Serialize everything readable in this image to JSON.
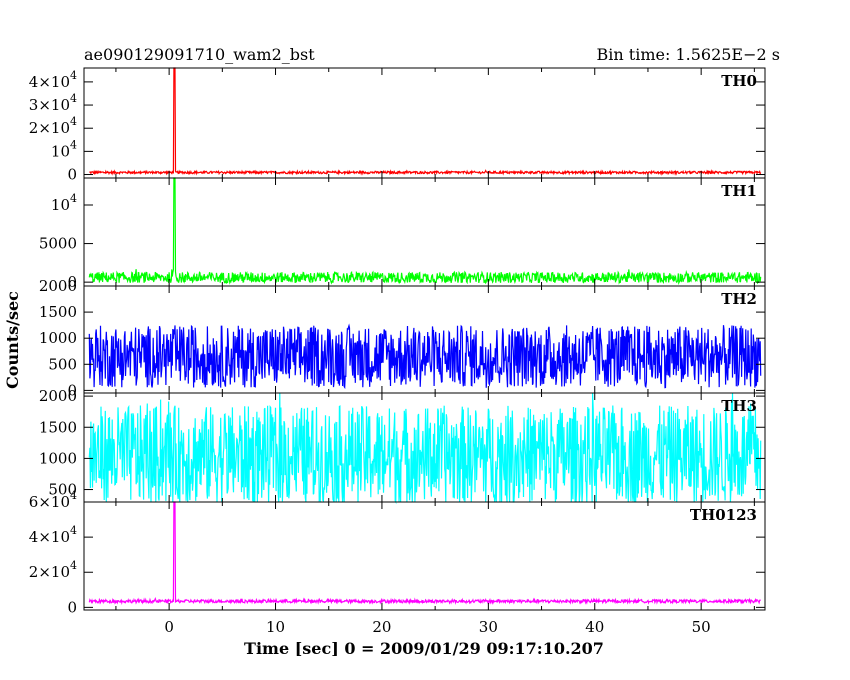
{
  "header": {
    "left": "ae090129091710_wam2_bst",
    "right": "Bin time: 1.5625E−2 s"
  },
  "chart_data": {
    "type": "line",
    "xlabel": "Time [sec] 0 = 2009/01/29 09:17:10.207",
    "ylabel": "Counts/sec",
    "xlim": [
      -8,
      56
    ],
    "x_ticks": [
      0,
      10,
      20,
      30,
      40,
      50
    ],
    "x_tick_labels": [
      "0",
      "10",
      "20",
      "30",
      "40",
      "50"
    ],
    "data_range": [
      -7.5,
      55.6
    ],
    "panels": [
      {
        "name": "TH0",
        "color": "#ff0000",
        "ylim": [
          -1500,
          46000
        ],
        "y_ticks": [
          0,
          10000,
          20000,
          30000,
          40000
        ],
        "y_tick_labels": [
          {
            "m": "0",
            "e": ""
          },
          {
            "m": "10",
            "e": "4"
          },
          {
            "m": "2×10",
            "e": "4"
          },
          {
            "m": "3×10",
            "e": "4"
          },
          {
            "m": "4×10",
            "e": "4"
          }
        ],
        "baseline": 900,
        "noise": 500,
        "peak": {
          "x": 0.5,
          "y": 46000
        }
      },
      {
        "name": "TH1",
        "color": "#00ff00",
        "ylim": [
          -500,
          13500
        ],
        "y_ticks": [
          0,
          5000,
          10000
        ],
        "y_tick_labels": [
          {
            "m": "0",
            "e": ""
          },
          {
            "m": "5000",
            "e": ""
          },
          {
            "m": "10",
            "e": "4"
          }
        ],
        "baseline": 600,
        "noise": 700,
        "peak": {
          "x": 0.5,
          "y": 13500
        }
      },
      {
        "name": "TH2",
        "color": "#0000ff",
        "ylim": [
          -50,
          2000
        ],
        "y_ticks": [
          0,
          500,
          1000,
          1500,
          2000
        ],
        "y_tick_labels": [
          {
            "m": "0",
            "e": ""
          },
          {
            "m": "500",
            "e": ""
          },
          {
            "m": "1000",
            "e": ""
          },
          {
            "m": "1500",
            "e": ""
          },
          {
            "m": "2000",
            "e": ""
          }
        ],
        "baseline": 650,
        "noise": 600,
        "peak": null
      },
      {
        "name": "TH3",
        "color": "#00ffff",
        "ylim": [
          300,
          2050
        ],
        "y_ticks": [
          500,
          1000,
          1500,
          2000
        ],
        "y_tick_labels": [
          {
            "m": "500",
            "e": ""
          },
          {
            "m": "1000",
            "e": ""
          },
          {
            "m": "1500",
            "e": ""
          },
          {
            "m": "2000",
            "e": ""
          }
        ],
        "baseline": 1050,
        "noise": 800,
        "peak": null
      },
      {
        "name": "TH0123",
        "color": "#ff00ff",
        "ylim": [
          -1500,
          60000
        ],
        "y_ticks": [
          0,
          20000,
          40000,
          60000
        ],
        "y_tick_labels": [
          {
            "m": "0",
            "e": ""
          },
          {
            "m": "2×10",
            "e": "4"
          },
          {
            "m": "4×10",
            "e": "4"
          },
          {
            "m": "6×10",
            "e": "4"
          }
        ],
        "baseline": 3500,
        "noise": 900,
        "peak": {
          "x": 0.5,
          "y": 60000
        }
      }
    ]
  }
}
